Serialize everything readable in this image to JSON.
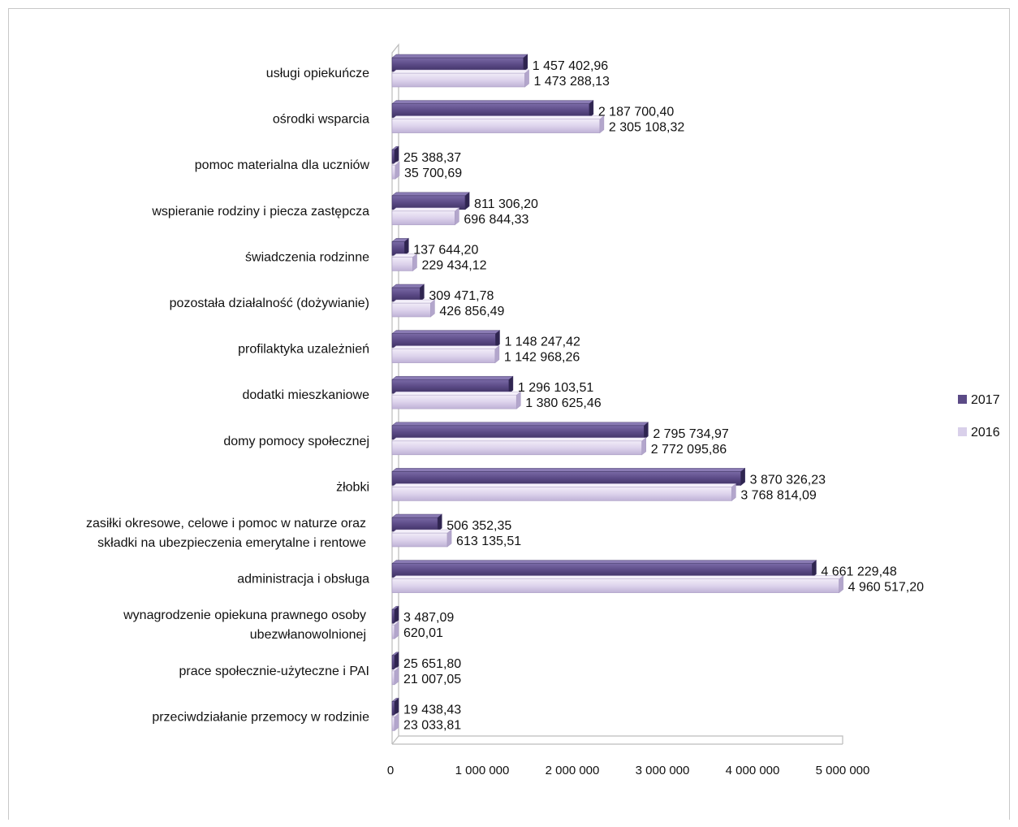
{
  "chart_data": {
    "type": "bar",
    "orientation": "horizontal",
    "categories": [
      [
        "usługi opiekuńcze"
      ],
      [
        "ośrodki wsparcia"
      ],
      [
        "pomoc materialna dla uczniów"
      ],
      [
        "wspieranie rodziny i piecza zastępcza"
      ],
      [
        "świadczenia rodzinne"
      ],
      [
        "pozostała działalność (dożywianie)"
      ],
      [
        "profilaktyka uzależnień"
      ],
      [
        "dodatki mieszkaniowe"
      ],
      [
        "domy pomocy społecznej"
      ],
      [
        "żłobki"
      ],
      [
        "zasiłki okresowe, celowe i pomoc w naturze oraz",
        "składki na ubezpieczenia emerytalne i rentowe"
      ],
      [
        "administracja i obsługa"
      ],
      [
        "wynagrodzenie opiekuna prawnego osoby",
        "ubezwłanowolnionej"
      ],
      [
        "prace społecznie-użyteczne i PAI"
      ],
      [
        "przeciwdziałanie przemocy w rodzinie"
      ]
    ],
    "series": [
      {
        "name": "2017",
        "color": "#5b4a86",
        "values": [
          1457402.96,
          2187700.4,
          25388.37,
          811306.2,
          137644.2,
          309471.78,
          1148247.42,
          1296103.51,
          2795734.97,
          3870326.23,
          506352.35,
          4661229.48,
          3487.09,
          25651.8,
          19438.43
        ],
        "labels": [
          "1 457 402,96",
          "2 187 700,40",
          "25 388,37",
          "811 306,20",
          "137 644,20",
          "309 471,78",
          "1 148 247,42",
          "1 296 103,51",
          "2 795 734,97",
          "3 870 326,23",
          "506 352,35",
          "4 661 229,48",
          "3 487,09",
          "25 651,80",
          "19 438,43"
        ]
      },
      {
        "name": "2016",
        "color": "#d9d0ea",
        "values": [
          1473288.13,
          2305108.32,
          35700.69,
          696844.33,
          229434.12,
          426856.49,
          1142968.26,
          1380625.46,
          2772095.86,
          3768814.09,
          613135.51,
          4960517.2,
          620.01,
          21007.05,
          23033.81
        ],
        "labels": [
          "1 473 288,13",
          "2 305 108,32",
          "35 700,69",
          "696 844,33",
          "229 434,12",
          "426 856,49",
          "1 142 968,26",
          "1 380 625,46",
          "2 772 095,86",
          "3 768 814,09",
          "613 135,51",
          "4 960 517,20",
          "620,01",
          "21 007,05",
          "23 033,81"
        ]
      }
    ],
    "xlim": [
      0,
      5000000
    ],
    "xticks": [
      0,
      1000000,
      2000000,
      3000000,
      4000000,
      5000000
    ],
    "xtick_labels": [
      "0",
      "1 000 000",
      "2 000 000",
      "3 000 000",
      "4 000 000",
      "5 000 000"
    ],
    "legend": {
      "position": "right",
      "items": [
        "2017",
        "2016"
      ]
    },
    "grid": false
  }
}
